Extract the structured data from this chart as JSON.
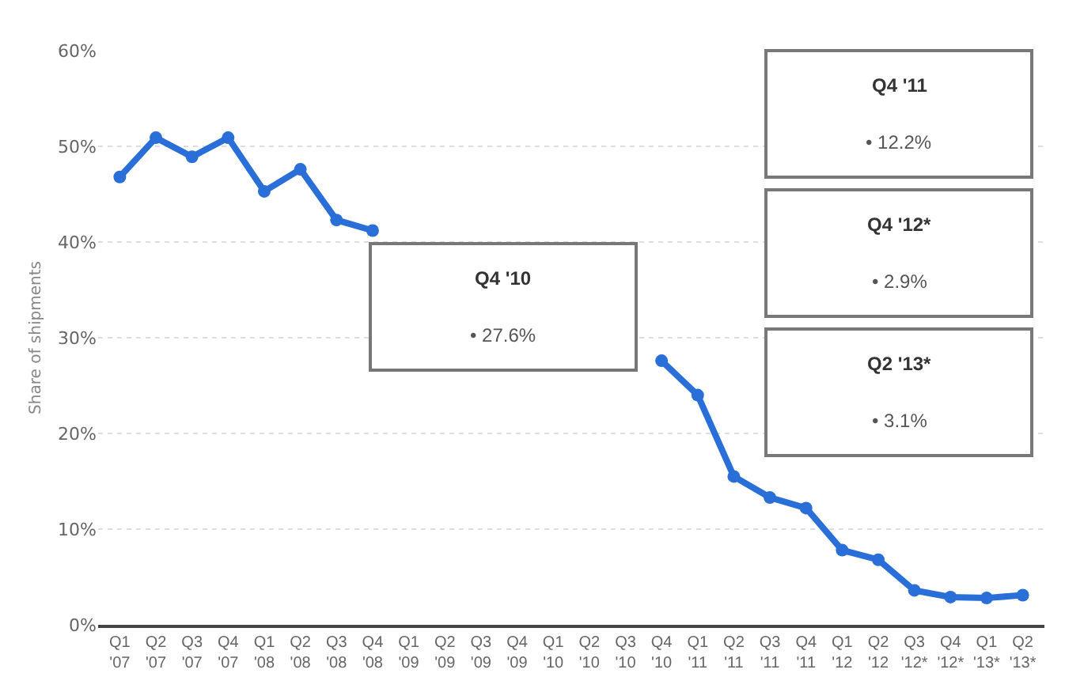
{
  "chart_data": {
    "type": "line",
    "ylabel": "Share of shipments",
    "categories": [
      "Q1\n'07",
      "Q2\n'07",
      "Q3\n'07",
      "Q4\n'07",
      "Q1\n'08",
      "Q2\n'08",
      "Q3\n'08",
      "Q4\n'08",
      "Q1\n'09",
      "Q2\n'09",
      "Q3\n'09",
      "Q4\n'09",
      "Q1\n'10",
      "Q2\n'10",
      "Q3\n'10",
      "Q4\n'10",
      "Q1\n'11",
      "Q2\n'11",
      "Q3\n'11",
      "Q4\n'11",
      "Q1\n'12",
      "Q2\n'12",
      "Q3\n'12*",
      "Q4\n'12*",
      "Q1\n'13*",
      "Q2\n'13*"
    ],
    "series": [
      {
        "color": "#2a6fd8",
        "values": [
          46.8,
          50.9,
          48.9,
          50.9,
          45.3,
          47.6,
          42.3,
          41.2,
          null,
          null,
          null,
          null,
          null,
          null,
          null,
          27.6,
          24.0,
          15.5,
          13.3,
          12.2,
          7.8,
          6.8,
          3.6,
          2.9,
          2.8,
          3.1
        ]
      }
    ],
    "ylim": [
      0,
      60
    ],
    "yticks": [
      {
        "value": 0,
        "label": "0%"
      },
      {
        "value": 10,
        "label": "10%"
      },
      {
        "value": 20,
        "label": "20%"
      },
      {
        "value": 30,
        "label": "30%"
      },
      {
        "value": 40,
        "label": "40%"
      },
      {
        "value": 50,
        "label": "50%"
      },
      {
        "value": 60,
        "label": "60%"
      }
    ],
    "grid": "y",
    "marker": "circle",
    "line_style": "solid",
    "annotations": [
      "Q4 '10",
      "• 27.6%",
      "Q4 '11",
      "• 12.2%",
      "Q4 '12*",
      "• 2.9%",
      "Q2 '13*",
      "• 3.1%"
    ]
  }
}
